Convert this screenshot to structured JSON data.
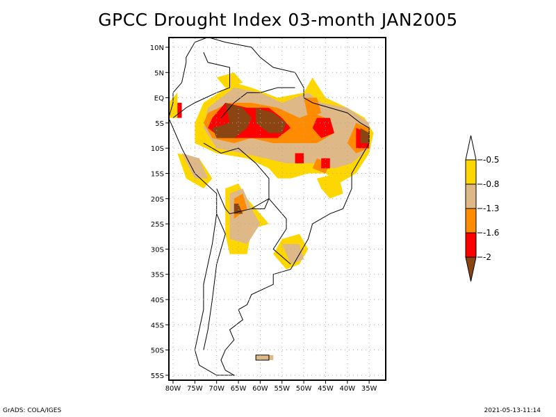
{
  "title": "GPCC Drought Index 03-month JAN2005",
  "footer": {
    "left": "GrADS: COLA/IGES",
    "right": "2021-05-13-11:14"
  },
  "map": {
    "region": "South America",
    "lon_range": [
      -81,
      -31
    ],
    "lat_range": [
      12,
      -56
    ],
    "lat_ticks": [
      {
        "value": 10,
        "label": "10N"
      },
      {
        "value": 5,
        "label": "5N"
      },
      {
        "value": 0,
        "label": "EQ"
      },
      {
        "value": -5,
        "label": "5S"
      },
      {
        "value": -10,
        "label": "10S"
      },
      {
        "value": -15,
        "label": "15S"
      },
      {
        "value": -20,
        "label": "20S"
      },
      {
        "value": -25,
        "label": "25S"
      },
      {
        "value": -30,
        "label": "30S"
      },
      {
        "value": -35,
        "label": "35S"
      },
      {
        "value": -40,
        "label": "40S"
      },
      {
        "value": -45,
        "label": "45S"
      },
      {
        "value": -50,
        "label": "50S"
      },
      {
        "value": -55,
        "label": "55S"
      }
    ],
    "lon_ticks": [
      {
        "value": -80,
        "label": "80W"
      },
      {
        "value": -75,
        "label": "75W"
      },
      {
        "value": -70,
        "label": "70W"
      },
      {
        "value": -65,
        "label": "65W"
      },
      {
        "value": -60,
        "label": "60W"
      },
      {
        "value": -55,
        "label": "55W"
      },
      {
        "value": -50,
        "label": "50W"
      },
      {
        "value": -45,
        "label": "45W"
      },
      {
        "value": -40,
        "label": "40W"
      },
      {
        "value": -35,
        "label": "35W"
      }
    ],
    "grid": true
  },
  "colorbar": {
    "levels": [
      {
        "label": "-0.5",
        "value": -0.5
      },
      {
        "label": "-0.8",
        "value": -0.8
      },
      {
        "label": "-1.3",
        "value": -1.3
      },
      {
        "label": "-1.6",
        "value": -1.6
      },
      {
        "label": "-2",
        "value": -2
      }
    ],
    "colors": {
      "above": "#ffffff",
      "c1": "#ffd700",
      "c2": "#deb887",
      "c3": "#ff8c00",
      "c4": "#ff0000",
      "below": "#8b4513"
    }
  }
}
